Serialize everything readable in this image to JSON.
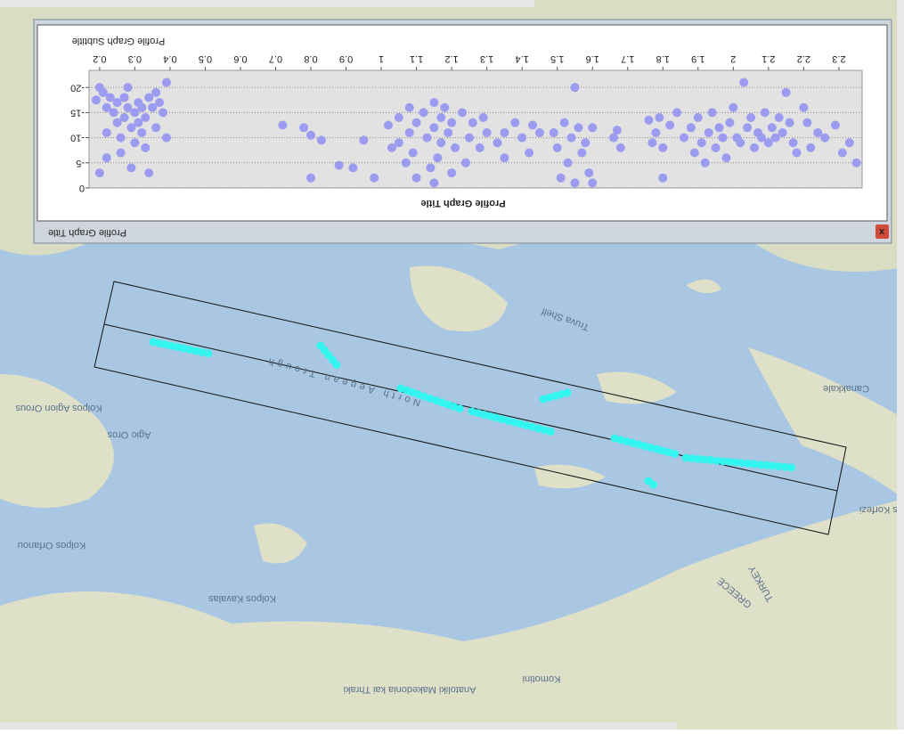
{
  "chart_data": {
    "type": "scatter",
    "title": "Profile Graph Title",
    "subtitle": "Profile Graph Subtitle",
    "window_title": "Profile Graph Title",
    "color": "#9b9bf0",
    "grid": true,
    "xlim": [
      0.17,
      2.366
    ],
    "ylim": [
      -23.4,
      0
    ],
    "xticks": [
      0.2,
      0.3,
      0.4,
      0.5,
      0.6,
      0.7,
      0.8,
      0.9,
      1,
      1.1,
      1.2,
      1.3,
      1.4,
      1.5,
      1.6,
      1.7,
      1.8,
      1.9,
      2,
      2.1,
      2.2,
      2.3
    ],
    "yticks": [
      0,
      -5,
      -10,
      -15,
      -20
    ],
    "x": [
      0.19,
      0.2,
      0.21,
      0.22,
      0.22,
      0.23,
      0.24,
      0.25,
      0.25,
      0.26,
      0.26,
      0.27,
      0.27,
      0.28,
      0.28,
      0.29,
      0.29,
      0.3,
      0.3,
      0.31,
      0.31,
      0.32,
      0.32,
      0.33,
      0.33,
      0.34,
      0.34,
      0.35,
      0.36,
      0.36,
      0.37,
      0.38,
      0.39,
      0.39,
      0.2,
      0.22,
      0.72,
      0.78,
      0.8,
      0.83,
      0.8,
      0.88,
      0.92,
      0.98,
      0.95,
      1.02,
      1.03,
      1.05,
      1.05,
      1.07,
      1.08,
      1.08,
      1.09,
      1.1,
      1.1,
      1.12,
      1.13,
      1.14,
      1.15,
      1.15,
      1.16,
      1.17,
      1.17,
      1.18,
      1.19,
      1.2,
      1.2,
      1.21,
      1.23,
      1.25,
      1.26,
      1.28,
      1.29,
      1.3,
      1.24,
      1.15,
      1.33,
      1.35,
      1.35,
      1.38,
      1.4,
      1.42,
      1.43,
      1.45,
      1.49,
      1.5,
      1.51,
      1.52,
      1.53,
      1.54,
      1.55,
      1.55,
      1.56,
      1.57,
      1.58,
      1.59,
      1.6,
      1.6,
      1.66,
      1.67,
      1.68,
      1.76,
      1.77,
      1.78,
      1.79,
      1.8,
      1.8,
      1.82,
      1.84,
      1.86,
      1.88,
      1.89,
      1.9,
      1.91,
      1.92,
      1.93,
      1.94,
      1.95,
      1.96,
      1.97,
      1.98,
      1.99,
      2.0,
      2.01,
      2.02,
      2.03,
      2.04,
      2.05,
      2.06,
      2.07,
      2.08,
      2.09,
      2.1,
      2.11,
      2.12,
      2.13,
      2.14,
      2.15,
      2.16,
      2.17,
      2.18,
      2.2,
      2.21,
      2.22,
      2.24,
      2.26,
      2.29,
      2.31,
      2.33,
      2.35
    ],
    "y": [
      -17.5,
      -20,
      -19,
      -16,
      -11,
      -18,
      -15,
      -17,
      -13,
      -10,
      -7,
      -18,
      -14,
      -20,
      -16,
      -12,
      -4,
      -15,
      -9,
      -17,
      -13,
      -16,
      -11,
      -14,
      -8,
      -3,
      -18,
      -16,
      -19,
      -12,
      -17,
      -15,
      -21,
      -10,
      -3,
      -6,
      -12.5,
      -12,
      -10.5,
      -9.5,
      -2,
      -4.5,
      -4,
      -2,
      -9.5,
      -12.5,
      -8,
      -14,
      -9,
      -5,
      -16,
      -11,
      -7,
      -13,
      -2,
      -15,
      -10,
      -4,
      -17,
      -12,
      -6,
      -14,
      -9,
      -16,
      -11,
      -13,
      -3,
      -8,
      -15,
      -10,
      -13,
      -8,
      -14,
      -11,
      -5,
      -1,
      -9,
      -11,
      -6,
      -13,
      -10,
      -7,
      -12.5,
      -11,
      -11,
      -8,
      -2,
      -13,
      -5,
      -10,
      -20,
      -1,
      -12,
      -7,
      -9,
      -3,
      -12,
      -1,
      -10,
      -11.5,
      -8,
      -13.5,
      -9,
      -11,
      -14,
      -2,
      -8,
      -12.5,
      -15,
      -10,
      -12,
      -7,
      -14,
      -9,
      -5,
      -11,
      -15,
      -8,
      -12,
      -10,
      -6,
      -13,
      -16,
      -10,
      -9,
      -21,
      -12,
      -14,
      -8,
      -11,
      -10,
      -15,
      -9,
      -12,
      -10,
      -14,
      -11,
      -19,
      -13,
      -9,
      -7,
      -16,
      -13,
      -8,
      -11,
      -10,
      -12.5,
      -7,
      -9,
      -5
    ]
  },
  "map": {
    "labels": [
      "North Aegean Trough",
      "Truva Shelf",
      "Canakkale",
      "Kolpos Agion Orous",
      "Agio Oros",
      "Kolpos Orfanou",
      "Kolpos Kavalas",
      "Anatoliki Makedonia kai Thraki",
      "Komotini",
      "TURKEY",
      "GREECE",
      "Saros Korfezi"
    ]
  }
}
